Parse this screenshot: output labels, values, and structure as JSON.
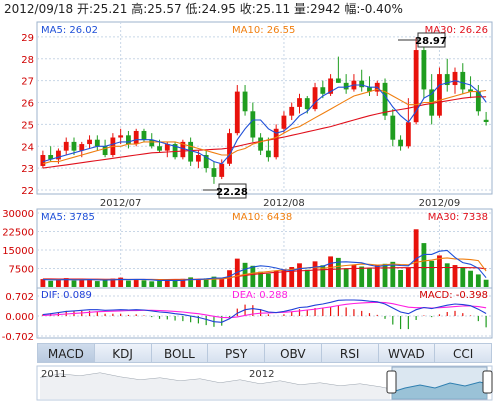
{
  "header": {
    "date": "2012/09/18",
    "open_label": "开:",
    "open": "25.21",
    "high_label": "高:",
    "high": "25.57",
    "low_label": "低:",
    "low": "24.95",
    "close_label": "收:",
    "close": "25.11",
    "volume_label": "量:",
    "volume": "2942",
    "change_label": "幅:",
    "change": "-0.40%"
  },
  "price_panel": {
    "ma5": "MA5: 26.02",
    "ma10": "MA10: 26.55",
    "ma30": "MA30: 26.26",
    "max_marker": "28.97",
    "min_marker": "22.28",
    "y_ticks": [
      "29",
      "28",
      "27",
      "26",
      "25",
      "24",
      "23",
      "22"
    ],
    "x_ticks": [
      "2012/07",
      "2012/08",
      "2012/09"
    ]
  },
  "volume_panel": {
    "ma5": "MA5: 3785",
    "ma10": "MA10: 6438",
    "ma30": "MA30: 7338",
    "y_ticks": [
      "30000",
      "22500",
      "15000",
      "7500"
    ]
  },
  "macd_panel": {
    "dif": "DIF: 0.089",
    "dea": "DEA: 0.288",
    "macd": "MACD: -0.398",
    "y_ticks": [
      "0.702",
      "0.000",
      "-0.702"
    ]
  },
  "tabs": [
    "MACD",
    "KDJ",
    "BOLL",
    "PSY",
    "OBV",
    "RSI",
    "WVAD",
    "CCI"
  ],
  "active_tab": "MACD",
  "navigator": {
    "year_labels": [
      "2011",
      "2012"
    ]
  },
  "colors": {
    "up": "#e8120c",
    "down": "#1f9d1f",
    "ma5": "#1f50d8",
    "ma10": "#f07f10",
    "ma30": "#e0101c",
    "dif": "#1f3fd8",
    "dea": "#ff1fe0",
    "grid": "#c8d6e6",
    "axis_text": "#d00000"
  },
  "chart_data": [
    {
      "type": "candlestick",
      "x_ticks": [
        "2012/07",
        "2012/08",
        "2012/09"
      ],
      "ylim": [
        22,
        29.5
      ],
      "y_ticks": [
        22,
        23,
        24,
        25,
        26,
        27,
        28,
        29
      ],
      "ohlc": [
        [
          23.1,
          23.8,
          23.0,
          23.6
        ],
        [
          23.6,
          24.0,
          23.3,
          23.4
        ],
        [
          23.4,
          23.9,
          23.2,
          23.8
        ],
        [
          23.8,
          24.4,
          23.6,
          24.2
        ],
        [
          24.2,
          24.4,
          23.6,
          23.8
        ],
        [
          23.8,
          24.2,
          23.5,
          24.1
        ],
        [
          24.1,
          24.5,
          23.9,
          24.3
        ],
        [
          24.3,
          24.5,
          23.8,
          24.0
        ],
        [
          24.0,
          24.3,
          23.5,
          23.6
        ],
        [
          23.6,
          24.6,
          23.5,
          24.4
        ],
        [
          24.4,
          24.8,
          24.1,
          24.5
        ],
        [
          24.5,
          24.7,
          23.9,
          24.1
        ],
        [
          24.1,
          24.8,
          24.0,
          24.7
        ],
        [
          24.7,
          24.8,
          24.2,
          24.3
        ],
        [
          24.3,
          24.6,
          23.9,
          24.0
        ],
        [
          24.0,
          24.3,
          23.7,
          23.8
        ],
        [
          23.8,
          24.2,
          23.5,
          24.1
        ],
        [
          24.1,
          24.2,
          23.4,
          23.5
        ],
        [
          23.5,
          24.3,
          23.4,
          24.2
        ],
        [
          24.2,
          24.4,
          23.1,
          23.3
        ],
        [
          23.3,
          23.8,
          23.0,
          23.6
        ],
        [
          23.6,
          23.8,
          22.8,
          23.0
        ],
        [
          23.0,
          23.3,
          22.28,
          22.6
        ],
        [
          22.6,
          23.4,
          22.5,
          23.2
        ],
        [
          23.2,
          24.8,
          23.1,
          24.6
        ],
        [
          24.6,
          26.8,
          24.5,
          26.5
        ],
        [
          26.5,
          26.8,
          25.4,
          25.6
        ],
        [
          25.6,
          26.0,
          24.2,
          24.4
        ],
        [
          24.4,
          24.6,
          23.6,
          23.8
        ],
        [
          23.8,
          24.4,
          23.3,
          23.5
        ],
        [
          23.5,
          25.0,
          23.4,
          24.8
        ],
        [
          24.8,
          25.6,
          24.6,
          25.4
        ],
        [
          25.4,
          26.0,
          25.2,
          25.8
        ],
        [
          25.8,
          26.4,
          25.5,
          26.2
        ],
        [
          26.2,
          26.3,
          25.5,
          25.7
        ],
        [
          25.7,
          26.9,
          25.6,
          26.7
        ],
        [
          26.7,
          27.0,
          26.2,
          26.4
        ],
        [
          26.4,
          27.3,
          26.3,
          27.1
        ],
        [
          27.1,
          28.1,
          26.9,
          26.9
        ],
        [
          26.9,
          27.3,
          26.4,
          26.6
        ],
        [
          26.6,
          27.3,
          26.5,
          27.0
        ],
        [
          27.0,
          27.5,
          26.5,
          26.7
        ],
        [
          26.7,
          27.2,
          26.3,
          26.5
        ],
        [
          26.5,
          27.0,
          26.3,
          26.9
        ],
        [
          26.9,
          27.1,
          25.2,
          25.4
        ],
        [
          25.4,
          25.7,
          24.0,
          24.3
        ],
        [
          24.3,
          24.5,
          23.8,
          24.0
        ],
        [
          24.0,
          26.2,
          23.9,
          25.1
        ],
        [
          25.1,
          28.97,
          25.0,
          28.4
        ],
        [
          28.4,
          28.6,
          26.2,
          26.6
        ],
        [
          26.6,
          27.3,
          25.0,
          25.4
        ],
        [
          25.4,
          27.6,
          25.3,
          27.3
        ],
        [
          27.3,
          28.0,
          26.5,
          26.8
        ],
        [
          26.8,
          27.6,
          26.4,
          27.4
        ],
        [
          27.4,
          27.8,
          26.4,
          26.6
        ],
        [
          26.6,
          27.2,
          26.2,
          26.5
        ],
        [
          26.5,
          26.8,
          25.4,
          25.6
        ],
        [
          25.21,
          25.57,
          24.95,
          25.11
        ]
      ],
      "ma5": [
        23.3,
        23.4,
        23.5,
        23.6,
        23.7,
        23.8,
        23.9,
        24.0,
        24.0,
        24.1,
        24.2,
        24.2,
        24.3,
        24.3,
        24.3,
        24.2,
        24.1,
        24.0,
        23.9,
        23.8,
        23.7,
        23.5,
        23.3,
        23.2,
        23.6,
        24.3,
        24.8,
        25.2,
        25.2,
        24.8,
        24.6,
        24.7,
        25.0,
        25.4,
        25.6,
        26.0,
        26.3,
        26.5,
        26.7,
        26.7,
        26.8,
        26.8,
        26.7,
        26.7,
        26.3,
        25.8,
        25.4,
        25.1,
        25.6,
        26.2,
        26.4,
        26.8,
        26.9,
        27.0,
        26.9,
        26.8,
        26.5,
        26.02
      ],
      "ma10": [
        23.2,
        23.3,
        23.3,
        23.4,
        23.5,
        23.6,
        23.7,
        23.8,
        23.9,
        24.0,
        24.0,
        24.1,
        24.1,
        24.2,
        24.2,
        24.2,
        24.2,
        24.2,
        24.1,
        24.0,
        23.9,
        23.8,
        23.7,
        23.6,
        23.6,
        23.8,
        23.9,
        24.1,
        24.2,
        24.3,
        24.4,
        24.6,
        24.8,
        24.9,
        25.1,
        25.3,
        25.5,
        25.7,
        25.9,
        26.1,
        26.3,
        26.4,
        26.5,
        26.6,
        26.5,
        26.3,
        26.1,
        25.9,
        25.9,
        26.0,
        26.0,
        26.1,
        26.2,
        26.3,
        26.4,
        26.5,
        26.5,
        26.55
      ],
      "ma30": [
        23.0,
        23.05,
        23.1,
        23.15,
        23.2,
        23.25,
        23.3,
        23.35,
        23.4,
        23.45,
        23.5,
        23.55,
        23.6,
        23.65,
        23.7,
        23.72,
        23.74,
        23.76,
        23.78,
        23.8,
        23.82,
        23.84,
        23.86,
        23.88,
        23.92,
        24.0,
        24.08,
        24.16,
        24.22,
        24.28,
        24.35,
        24.42,
        24.5,
        24.58,
        24.66,
        24.74,
        24.82,
        24.9,
        25.0,
        25.1,
        25.2,
        25.3,
        25.4,
        25.48,
        25.56,
        25.62,
        25.68,
        25.74,
        25.82,
        25.9,
        25.96,
        26.02,
        26.08,
        26.14,
        26.2,
        26.24,
        26.26,
        26.26
      ]
    },
    {
      "type": "bar",
      "title": "volume",
      "ylim": [
        0,
        30000
      ],
      "y_ticks": [
        7500,
        15000,
        22500,
        30000
      ],
      "values": [
        3200,
        2500,
        2800,
        3600,
        2600,
        2900,
        3100,
        2400,
        2800,
        3400,
        3800,
        2600,
        3100,
        2700,
        2300,
        2500,
        2900,
        2600,
        3300,
        3900,
        3000,
        3500,
        4200,
        3800,
        6800,
        11500,
        9800,
        8600,
        6200,
        5400,
        6600,
        7200,
        8100,
        9600,
        7000,
        10400,
        8800,
        12400,
        11800,
        7600,
        8900,
        8300,
        7700,
        9000,
        9400,
        10200,
        6900,
        7700,
        23400,
        17800,
        10600,
        12800,
        9600,
        8900,
        7800,
        6600,
        5100,
        2942
      ],
      "ma5": [
        3000,
        2900,
        2900,
        3000,
        2900,
        2900,
        3000,
        2900,
        2800,
        2900,
        3100,
        3000,
        3100,
        3100,
        2900,
        2600,
        2700,
        2600,
        2700,
        3000,
        3100,
        3300,
        3600,
        3600,
        4300,
        6000,
        7200,
        8100,
        8600,
        8300,
        7700,
        6900,
        6700,
        7400,
        7700,
        8100,
        8400,
        9600,
        10100,
        10200,
        10000,
        9800,
        8900,
        8300,
        8700,
        8900,
        8700,
        8600,
        11500,
        13200,
        13200,
        14500,
        14800,
        12000,
        9900,
        9200,
        7600,
        3785
      ],
      "ma10": [
        3100,
        3050,
        3000,
        3000,
        2950,
        2950,
        2950,
        2950,
        2900,
        2900,
        3000,
        3000,
        3000,
        3050,
        3000,
        2900,
        2900,
        2850,
        2900,
        2950,
        3000,
        3100,
        3200,
        3300,
        3700,
        4500,
        5100,
        5600,
        5900,
        6300,
        6600,
        6900,
        7100,
        7500,
        7800,
        7900,
        7600,
        7900,
        8400,
        8700,
        9000,
        9300,
        9200,
        8900,
        9000,
        9300,
        9100,
        9000,
        10000,
        10600,
        10900,
        11500,
        11800,
        11400,
        11300,
        11100,
        10700,
        6438
      ],
      "ma30": [
        3300,
        3280,
        3260,
        3240,
        3220,
        3200,
        3180,
        3160,
        3140,
        3120,
        3110,
        3100,
        3090,
        3080,
        3070,
        3060,
        3060,
        3070,
        3080,
        3100,
        3150,
        3250,
        3400,
        3600,
        3900,
        4300,
        4700,
        5100,
        5400,
        5700,
        5950,
        6150,
        6350,
        6550,
        6700,
        6850,
        7000,
        7150,
        7300,
        7400,
        7500,
        7600,
        7650,
        7700,
        7750,
        7800,
        7820,
        7840,
        7860,
        7880,
        7890,
        7900,
        7900,
        7890,
        7870,
        7840,
        7800,
        7338
      ]
    },
    {
      "type": "line",
      "title": "MACD",
      "ylim": [
        -0.702,
        0.702
      ],
      "y_ticks": [
        -0.702,
        0.0,
        0.702
      ],
      "dif": [
        0.05,
        0.08,
        0.12,
        0.16,
        0.18,
        0.2,
        0.22,
        0.22,
        0.2,
        0.21,
        0.22,
        0.21,
        0.22,
        0.21,
        0.18,
        0.14,
        0.12,
        0.08,
        0.05,
        0.0,
        -0.05,
        -0.12,
        -0.2,
        -0.22,
        -0.1,
        0.1,
        0.22,
        0.26,
        0.22,
        0.14,
        0.12,
        0.16,
        0.22,
        0.3,
        0.32,
        0.38,
        0.42,
        0.48,
        0.55,
        0.56,
        0.56,
        0.55,
        0.52,
        0.5,
        0.42,
        0.28,
        0.14,
        0.08,
        0.22,
        0.3,
        0.26,
        0.32,
        0.38,
        0.42,
        0.4,
        0.36,
        0.24,
        0.089
      ],
      "dea": [
        0.02,
        0.03,
        0.05,
        0.07,
        0.09,
        0.11,
        0.13,
        0.15,
        0.16,
        0.17,
        0.18,
        0.19,
        0.19,
        0.2,
        0.2,
        0.19,
        0.18,
        0.16,
        0.14,
        0.11,
        0.08,
        0.04,
        -0.01,
        -0.05,
        -0.06,
        -0.03,
        0.02,
        0.07,
        0.1,
        0.11,
        0.12,
        0.13,
        0.15,
        0.18,
        0.21,
        0.24,
        0.28,
        0.32,
        0.37,
        0.41,
        0.44,
        0.46,
        0.47,
        0.48,
        0.47,
        0.43,
        0.37,
        0.31,
        0.29,
        0.29,
        0.28,
        0.29,
        0.31,
        0.33,
        0.35,
        0.35,
        0.33,
        0.288
      ],
      "macd": [
        0.06,
        0.1,
        0.14,
        0.18,
        0.18,
        0.18,
        0.18,
        0.14,
        0.08,
        0.08,
        0.08,
        0.04,
        0.06,
        0.02,
        -0.04,
        -0.1,
        -0.12,
        -0.16,
        -0.18,
        -0.22,
        -0.26,
        -0.32,
        -0.38,
        -0.34,
        -0.08,
        0.26,
        0.4,
        0.38,
        0.24,
        0.06,
        0.0,
        0.06,
        0.14,
        0.24,
        0.22,
        0.28,
        0.28,
        0.32,
        0.36,
        0.3,
        0.24,
        0.18,
        0.1,
        0.04,
        -0.1,
        -0.3,
        -0.46,
        -0.46,
        -0.14,
        0.02,
        -0.04,
        0.06,
        0.14,
        0.18,
        0.1,
        0.02,
        -0.18,
        -0.398
      ]
    }
  ]
}
